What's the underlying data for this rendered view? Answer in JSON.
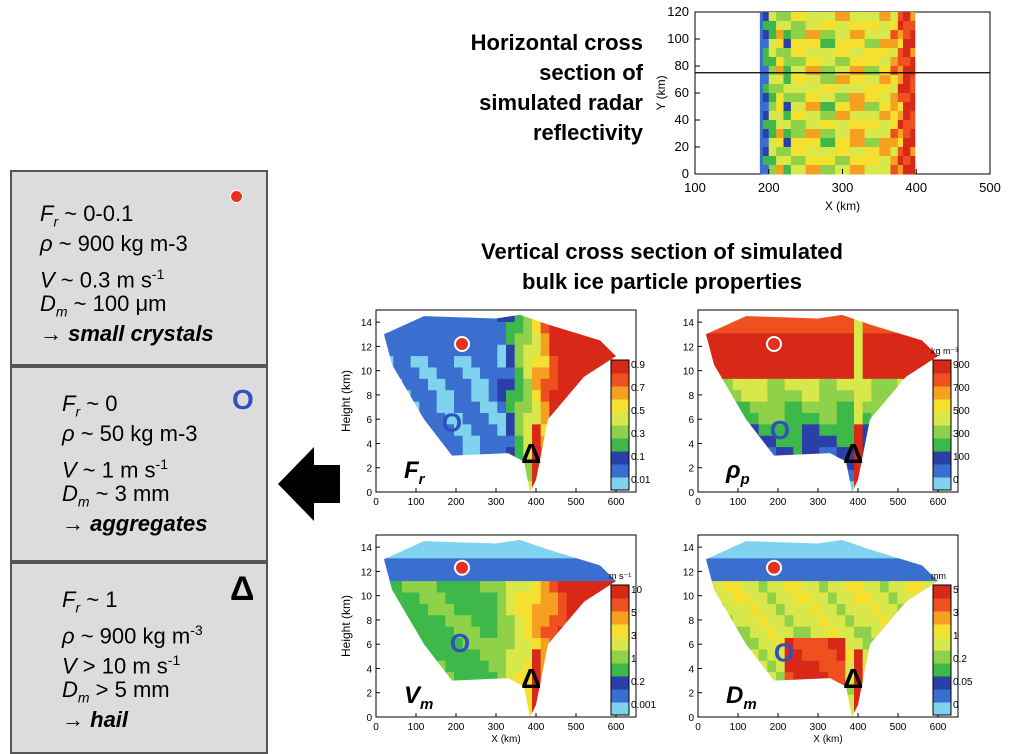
{
  "titles": {
    "horizontal": [
      "Horizontal cross",
      "section of",
      "simulated radar",
      "reflectivity"
    ],
    "vertical": [
      "Vertical cross section of simulated",
      "bulk ice particle properties"
    ]
  },
  "boxes": [
    {
      "marker": "dot",
      "lines": [
        {
          "sym": "F",
          "sub": "r",
          "rest": " ~ 0-0.1"
        },
        {
          "sym": "ρ",
          "sub": "",
          "rest": " ~ 900 kg m-3"
        },
        {
          "sym": "V",
          "sub": "",
          "rest": " ~ 0.3 m s",
          "sup": "-1"
        },
        {
          "sym": "D",
          "sub": "m",
          "rest": " ~ 100 μm"
        }
      ],
      "arrow": "→",
      "result": "small crystals"
    },
    {
      "marker": "O",
      "lines": [
        {
          "sym": "F",
          "sub": "r",
          "rest": " ~ 0"
        },
        {
          "sym": "ρ",
          "sub": "",
          "rest": " ~ 50 kg m-3"
        },
        {
          "sym": "V",
          "sub": "",
          "rest": " ~ 1 m s",
          "sup": "-1"
        },
        {
          "sym": "D",
          "sub": "m",
          "rest": " ~ 3 mm"
        }
      ],
      "arrow": "→",
      "result": "aggregates"
    },
    {
      "marker": "Δ",
      "lines": [
        {
          "sym": "F",
          "sub": "r",
          "rest": " ~ 1"
        },
        {
          "sym": "ρ",
          "sub": "",
          "rest": " ~ 900 kg m",
          "sup": "-3"
        },
        {
          "sym": "V",
          "sub": "",
          "rest": " > 10 m s",
          "sup": "-1"
        },
        {
          "sym": "D",
          "sub": "m",
          "rest": " > 5 mm"
        }
      ],
      "arrow": "→",
      "result": "hail"
    }
  ],
  "top_map": {
    "ylabel": "Y (km)",
    "xlabel": "X (km)",
    "yticks": [
      "0",
      "20",
      "40",
      "60",
      "80",
      "100",
      "120"
    ],
    "xticks": [
      "100",
      "200",
      "300",
      "400",
      "500"
    ]
  },
  "panels": [
    {
      "label": "F",
      "sub": "r",
      "unit": "",
      "cbar": [
        "0.9",
        "0.7",
        "0.5",
        "0.3",
        "0.1",
        "0.01"
      ]
    },
    {
      "label": "ρ",
      "sub": "p",
      "unit": "kg m⁻³",
      "cbar": [
        "900",
        "700",
        "500",
        "300",
        "100",
        "0"
      ]
    },
    {
      "label": "V",
      "sub": "m",
      "unit": "m s⁻¹",
      "cbar": [
        "10",
        "5",
        "3",
        "1",
        "0.2",
        "0.001"
      ]
    },
    {
      "label": "D",
      "sub": "m",
      "unit": "mm",
      "cbar": [
        "5",
        "3",
        "1",
        "0.2",
        "0.05",
        "0"
      ]
    }
  ],
  "panel_axes": {
    "ylabel": "Height (km)",
    "xlabel": "X (km)",
    "yticks": [
      "0",
      "2",
      "4",
      "6",
      "8",
      "10",
      "12",
      "14"
    ],
    "xticks": [
      "0",
      "100",
      "200",
      "300",
      "400",
      "500",
      "600"
    ]
  },
  "markers": {
    "circle": "O",
    "triangle": "Δ"
  },
  "colors": {
    "red": "#e83020",
    "blue": "#3050c0",
    "box_bg": "#dcdcdc"
  }
}
